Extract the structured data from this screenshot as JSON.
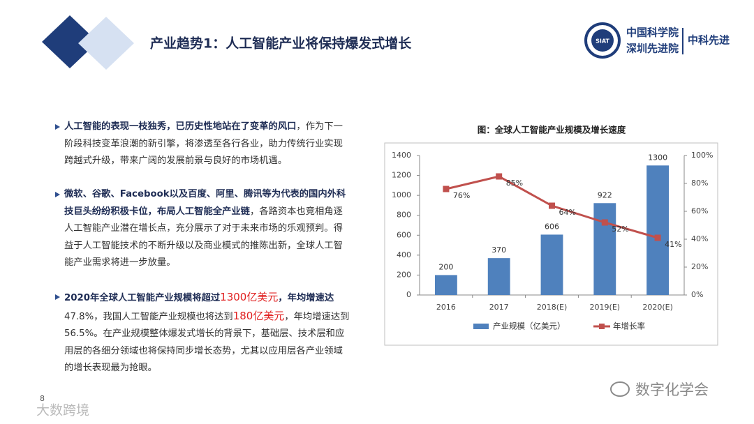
{
  "header": {
    "title": "产业趋势1：人工智能产业将保持爆发式增长",
    "logo_badge": "SIAT",
    "logo_line1": "中国科学院",
    "logo_line2": "深圳先进院",
    "logo_brand": "中科先进"
  },
  "bullets": [
    [
      {
        "text": "人工智能的表现一枝独秀，已历史性地站在了变革的风口",
        "style": "bold"
      },
      {
        "text": "，作为下一阶段科技变革浪潮的新引擎，将渗透至各行各业，助力传统行业实现跨越式升级，带来广阔的发展前景与良好的市场机遇。",
        "style": "normal"
      }
    ],
    [
      {
        "text": "微软、谷歌、Facebook以及百度、阿里、腾讯等为代表的国内外科技巨头纷纷积极卡位，布局人工智能全产业链",
        "style": "bold"
      },
      {
        "text": "，各路资本也竞相角逐人工智能产业潜在增长点，充分展示了对于未来市场的乐观预判。得益于人工智能技术的不断升级以及商业模式的推陈出新，全球人工智能产业需求将进一步放量。",
        "style": "normal"
      }
    ],
    [
      {
        "text": "2020年全球人工智能产业规模将超过",
        "style": "bold"
      },
      {
        "text": "1300亿美元",
        "style": "red"
      },
      {
        "text": "，年均增速达",
        "style": "bold"
      },
      {
        "text": "47.8%，我国人工智能产业规模也将达到",
        "style": "normal"
      },
      {
        "text": "180亿美元",
        "style": "red"
      },
      {
        "text": "，年均增速达到56.5%。在产业规模整体爆发式增长的背景下，基础层、技术层和应用层的各细分领域也将保持同步增长态势，尤其以应用层各产业领域的增长表现最为抢眼。",
        "style": "normal"
      }
    ]
  ],
  "page_number": "8",
  "watermark_right": "数字化学会",
  "watermark_left": "大数跨境",
  "chart_data": {
    "type": "bar_line",
    "title": "图：全球人工智能产业规模及增长速度",
    "categories": [
      "2016",
      "2017",
      "2018(E)",
      "2019(E)",
      "2020(E)"
    ],
    "series": [
      {
        "name": "产业规模（亿美元）",
        "type": "bar",
        "color": "#4f81bd",
        "values": [
          200,
          370,
          606,
          922,
          1300
        ]
      },
      {
        "name": "年增长率",
        "type": "line",
        "color": "#c0504d",
        "axis": "y2",
        "values": [
          76,
          85,
          64,
          52,
          41
        ],
        "value_labels": [
          "76%",
          "85%",
          "64%",
          "52%",
          "41%"
        ]
      }
    ],
    "ylim": [
      0,
      1400
    ],
    "yticks": [
      0,
      200,
      400,
      600,
      800,
      1000,
      1200,
      1400
    ],
    "y2lim": [
      0,
      100
    ],
    "y2ticks": [
      {
        "value": 0,
        "label": "0%"
      },
      {
        "value": 20,
        "label": "20%"
      },
      {
        "value": 40,
        "label": "40%"
      },
      {
        "value": 60,
        "label": "60%"
      },
      {
        "value": 80,
        "label": "80%"
      },
      {
        "value": 100,
        "label": "100%"
      }
    ],
    "grid": false,
    "legend": "bottom"
  }
}
